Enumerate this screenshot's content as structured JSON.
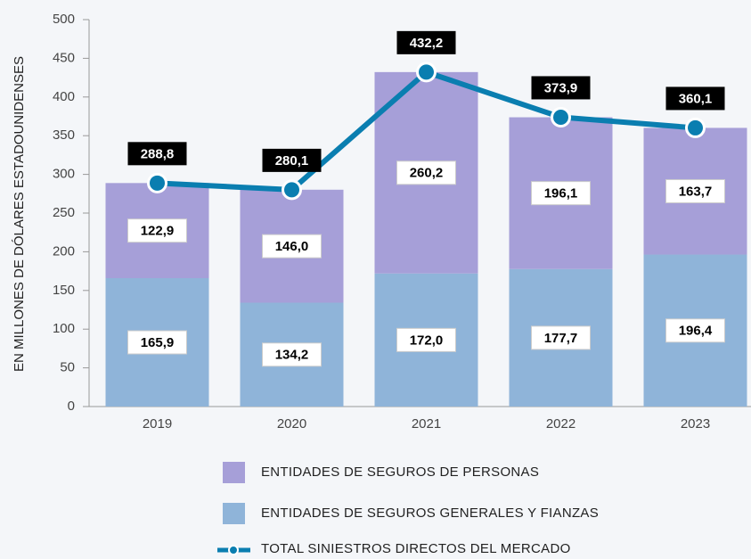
{
  "chart_data": {
    "type": "bar",
    "y_label": "EN MILLONES DE DÓLARES ESTADOUNIDENSES",
    "categories": [
      "2019",
      "2020",
      "2021",
      "2022",
      "2023"
    ],
    "ylim": [
      0,
      500
    ],
    "yticks": [
      0,
      50,
      100,
      150,
      200,
      250,
      300,
      350,
      400,
      450,
      500
    ],
    "series": [
      {
        "name": "ENTIDADES DE SEGUROS DE PERSONAS",
        "type": "bar",
        "color": "#a69fd8",
        "values": [
          122.9,
          146.0,
          260.2,
          196.1,
          163.7
        ],
        "value_labels": [
          "122,9",
          "146,0",
          "260,2",
          "196,1",
          "163,7"
        ]
      },
      {
        "name": "ENTIDADES DE SEGUROS GENERALES Y FIANZAS",
        "type": "bar",
        "color": "#8fb4d9",
        "values": [
          165.9,
          134.2,
          172.0,
          177.7,
          196.4
        ],
        "value_labels": [
          "165,9",
          "134,2",
          "172,0",
          "177,7",
          "196,4"
        ]
      },
      {
        "name": "TOTAL SINIESTROS DIRECTOS DEL MERCADO",
        "type": "line",
        "color": "#0a7eb0",
        "values": [
          288.8,
          280.1,
          432.2,
          373.9,
          360.1
        ],
        "value_labels": [
          "288,8",
          "280,1",
          "432,2",
          "373,9",
          "360,1"
        ]
      }
    ]
  }
}
